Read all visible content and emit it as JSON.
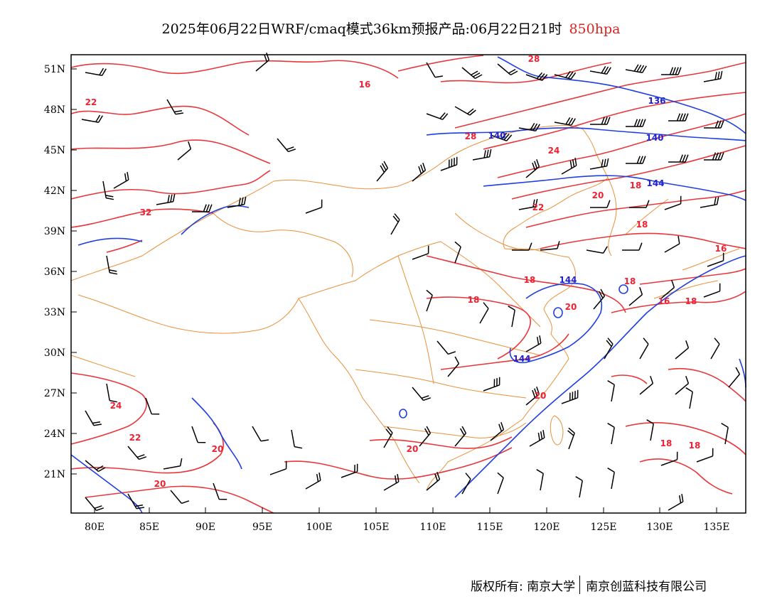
{
  "title": {
    "main": "2025年06月22日WRF/cmaq模式36km预报产品:06月22日21时",
    "level": "850hpa"
  },
  "axes": {
    "lon_labels": [
      "80E",
      "85E",
      "90E",
      "95E",
      "100E",
      "105E",
      "110E",
      "115E",
      "120E",
      "125E",
      "130E",
      "135E"
    ],
    "lat_labels": [
      "51N",
      "48N",
      "45N",
      "42N",
      "39N",
      "36N",
      "33N",
      "30N",
      "27N",
      "24N",
      "21N"
    ]
  },
  "colors": {
    "temperature_contour": "#e8373b",
    "geopotential_contour": "#1f3fe0",
    "boundary": "#e8913a",
    "wind_barb": "#000000",
    "title_level": "#d22222"
  },
  "contour_labels": {
    "temperature": [
      "16",
      "22",
      "28",
      "28",
      "24",
      "32",
      "22",
      "20",
      "18",
      "18",
      "16",
      "18",
      "16",
      "18",
      "18",
      "20",
      "18",
      "20",
      "24",
      "22",
      "20",
      "20",
      "20",
      "18",
      "18"
    ],
    "geopotential": [
      "136",
      "140",
      "140",
      "144",
      "144",
      "144"
    ]
  },
  "footer": {
    "left": "版权所有: 南京大学",
    "right": "南京创蓝科技有限公司"
  }
}
